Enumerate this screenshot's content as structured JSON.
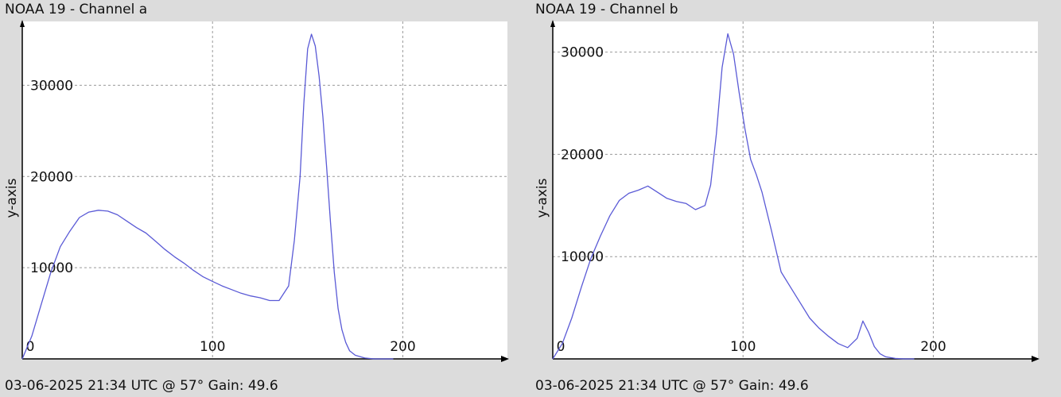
{
  "panels": [
    {
      "title": "NOAA 19 - Channel a",
      "footer": "03-06-2025 21:34 UTC @ 57° Gain: 49.6"
    },
    {
      "title": "NOAA 19 - Channel b",
      "footer": "03-06-2025 21:34 UTC @ 57° Gain: 49.6"
    }
  ],
  "colors": {
    "line": "#5a5ad6",
    "grid": "#999999",
    "plot_bg": "#ffffff",
    "page_bg": "#dcdcdc"
  },
  "chart_data": [
    {
      "type": "line",
      "title": "NOAA 19 - Channel a",
      "xlabel": "",
      "ylabel": "y-axis",
      "xlim": [
        0,
        255
      ],
      "ylim": [
        0,
        37000
      ],
      "xticks": [
        0,
        100,
        200
      ],
      "yticks": [
        10000,
        20000,
        30000
      ],
      "xtick_labels": [
        "0",
        "100",
        "200"
      ],
      "ytick_labels": [
        "10000",
        "20000",
        "30000"
      ],
      "grid": true,
      "series": [
        {
          "x": [
            0,
            5,
            10,
            15,
            20,
            25,
            30,
            35,
            40,
            45,
            50,
            55,
            60,
            65,
            70,
            75,
            80,
            85,
            90,
            95,
            100,
            105,
            110,
            115,
            120,
            125,
            130,
            135,
            140,
            143,
            146,
            148,
            150,
            152,
            154,
            156,
            158,
            160,
            162,
            164,
            166,
            168,
            170,
            172,
            175,
            180,
            185,
            190,
            195
          ],
          "y": [
            0,
            2500,
            6000,
            9500,
            12300,
            14000,
            15500,
            16100,
            16300,
            16200,
            15800,
            15100,
            14400,
            13800,
            12900,
            12000,
            11200,
            10500,
            9700,
            9000,
            8500,
            8000,
            7600,
            7200,
            6900,
            6700,
            6400,
            6400,
            8000,
            13000,
            20000,
            28000,
            34000,
            35600,
            34300,
            31000,
            26500,
            21000,
            15000,
            9500,
            5500,
            3200,
            1800,
            900,
            400,
            100,
            0,
            0,
            0
          ],
          "color": "#5a5ad6"
        }
      ]
    },
    {
      "type": "line",
      "title": "NOAA 19 - Channel b",
      "xlabel": "",
      "ylabel": "y-axis",
      "xlim": [
        0,
        255
      ],
      "ylim": [
        0,
        33000
      ],
      "xticks": [
        0,
        100,
        200
      ],
      "yticks": [
        10000,
        20000,
        30000
      ],
      "xtick_labels": [
        "0",
        "100",
        "200"
      ],
      "ytick_labels": [
        "10000",
        "20000",
        "30000"
      ],
      "grid": true,
      "series": [
        {
          "x": [
            0,
            5,
            10,
            15,
            20,
            25,
            30,
            35,
            40,
            45,
            50,
            55,
            60,
            65,
            70,
            75,
            80,
            83,
            86,
            89,
            92,
            95,
            98,
            101,
            104,
            107,
            110,
            115,
            120,
            125,
            130,
            135,
            140,
            145,
            150,
            155,
            160,
            163,
            166,
            169,
            172,
            175,
            180,
            185,
            190
          ],
          "y": [
            0,
            1500,
            4000,
            7000,
            9800,
            12000,
            14000,
            15500,
            16200,
            16500,
            16900,
            16300,
            15700,
            15400,
            15200,
            14600,
            15000,
            17000,
            22000,
            28500,
            31800,
            29800,
            26000,
            22500,
            19500,
            18000,
            16300,
            12500,
            8500,
            7000,
            5500,
            4000,
            3000,
            2200,
            1500,
            1100,
            2000,
            3700,
            2600,
            1200,
            500,
            200,
            50,
            0,
            0
          ],
          "color": "#5a5ad6"
        }
      ]
    }
  ]
}
